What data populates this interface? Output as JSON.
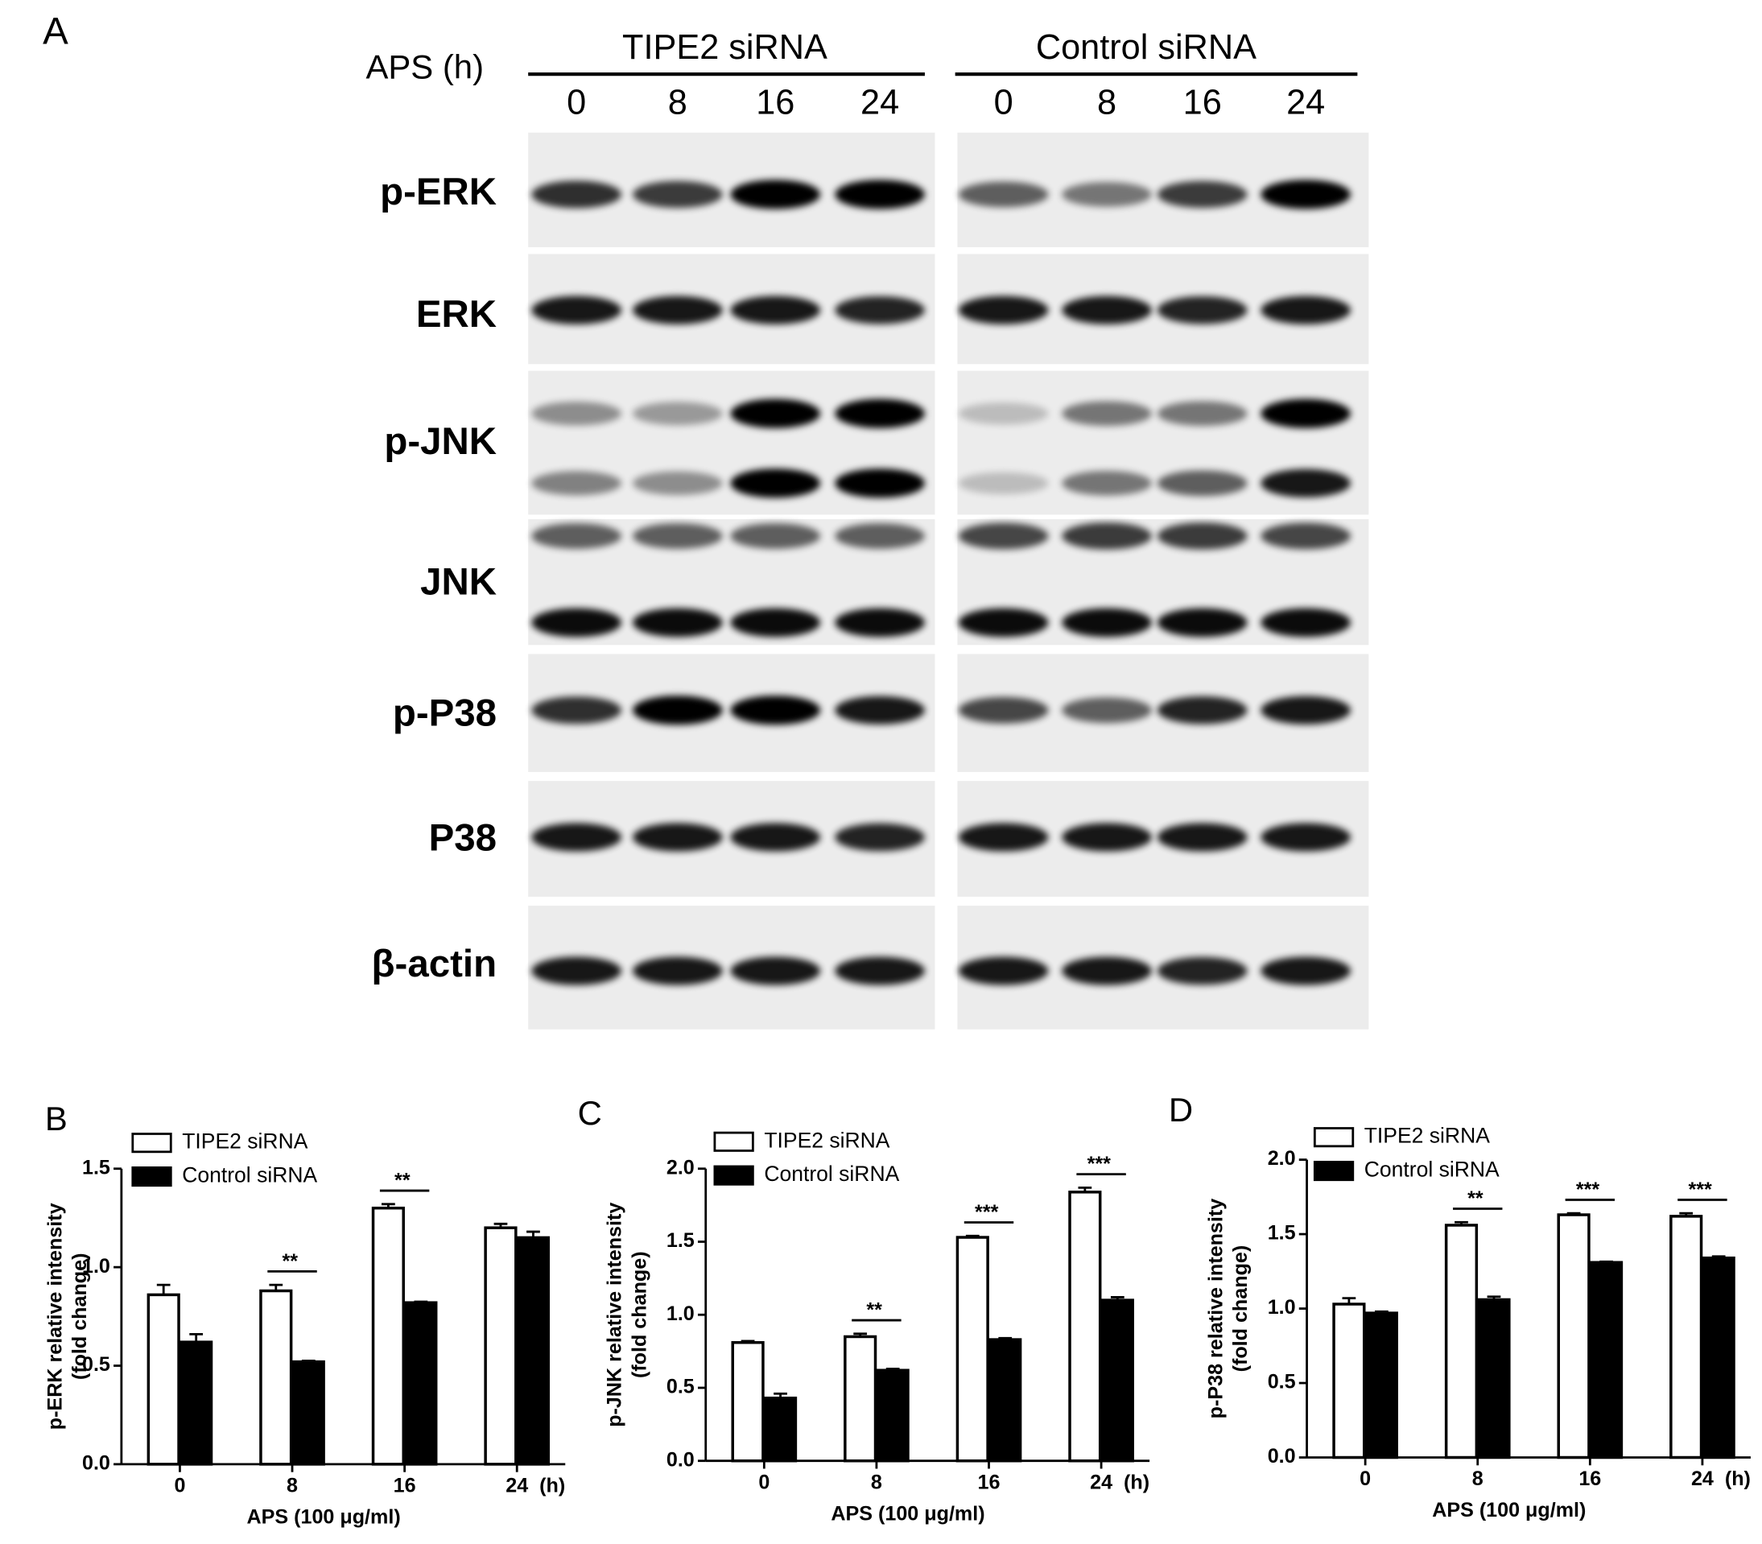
{
  "blot": {
    "panel_label": "A",
    "treatment_label": "APS (h)",
    "groups": [
      {
        "name": "TIPE2 siRNA",
        "timepoints": [
          "0",
          "8",
          "16",
          "24"
        ]
      },
      {
        "name": "Control siRNA",
        "timepoints": [
          "0",
          "8",
          "16",
          "24"
        ]
      }
    ],
    "rows": [
      "p-ERK",
      "ERK",
      "p-JNK",
      "JNK",
      "p-P38",
      "P38",
      "β-actin"
    ]
  },
  "chart_data": [
    {
      "type": "bar",
      "panel_label": "B",
      "y_label": [
        "p-ERK relative intensity",
        "(fold change)"
      ],
      "x_label": "APS (100 μg/ml)",
      "x_unit": "(h)",
      "categories": [
        "0",
        "8",
        "16",
        "24"
      ],
      "series": [
        {
          "name": "TIPE2 siRNA",
          "color": "#ffffff",
          "values": [
            0.86,
            0.88,
            1.3,
            1.2
          ],
          "errors": [
            0.05,
            0.03,
            0.02,
            0.02
          ]
        },
        {
          "name": "Control siRNA",
          "color": "#000000",
          "values": [
            0.62,
            0.52,
            0.82,
            1.15
          ],
          "errors": [
            0.04,
            0.005,
            0.005,
            0.03
          ]
        }
      ],
      "annotations": [
        null,
        "**",
        "**",
        null
      ],
      "ylim": [
        0,
        1.5
      ],
      "yticks": [
        {
          "value": 0,
          "label": "0.0"
        },
        {
          "value": 0.5,
          "label": "0.5"
        },
        {
          "value": 1,
          "label": "1.0"
        },
        {
          "value": 1.5,
          "label": "1.5"
        }
      ]
    },
    {
      "type": "bar",
      "panel_label": "C",
      "y_label": [
        "p-JNK relative intensity",
        "(fold change)"
      ],
      "x_label": "APS (100 μg/ml)",
      "x_unit": "(h)",
      "categories": [
        "0",
        "8",
        "16",
        "24"
      ],
      "series": [
        {
          "name": "TIPE2 siRNA",
          "color": "#ffffff",
          "values": [
            0.81,
            0.85,
            1.53,
            1.84
          ],
          "errors": [
            0.01,
            0.02,
            0.01,
            0.03
          ]
        },
        {
          "name": "Control siRNA",
          "color": "#000000",
          "values": [
            0.43,
            0.62,
            0.83,
            1.1
          ],
          "errors": [
            0.03,
            0.01,
            0.01,
            0.02
          ]
        }
      ],
      "annotations": [
        null,
        "**",
        "***",
        "***"
      ],
      "ylim": [
        0,
        2
      ],
      "yticks": [
        {
          "value": 0,
          "label": "0.0"
        },
        {
          "value": 0.5,
          "label": "0.5"
        },
        {
          "value": 1,
          "label": "1.0"
        },
        {
          "value": 1.5,
          "label": "1.5"
        },
        {
          "value": 2,
          "label": "2.0"
        }
      ]
    },
    {
      "type": "bar",
      "panel_label": "D",
      "y_label": [
        "p-P38 relative intensity",
        "(fold change)"
      ],
      "x_label": "APS (100 μg/ml)",
      "x_unit": "(h)",
      "categories": [
        "0",
        "8",
        "16",
        "24"
      ],
      "series": [
        {
          "name": "TIPE2 siRNA",
          "color": "#ffffff",
          "values": [
            1.03,
            1.56,
            1.63,
            1.62
          ],
          "errors": [
            0.04,
            0.02,
            0.01,
            0.02
          ]
        },
        {
          "name": "Control siRNA",
          "color": "#000000",
          "values": [
            0.97,
            1.06,
            1.31,
            1.34
          ],
          "errors": [
            0.01,
            0.02,
            0.005,
            0.01
          ]
        }
      ],
      "annotations": [
        null,
        "**",
        "***",
        "***"
      ],
      "ylim": [
        0,
        2
      ],
      "yticks": [
        {
          "value": 0,
          "label": "0.0"
        },
        {
          "value": 0.5,
          "label": "0.5"
        },
        {
          "value": 1,
          "label": "1.0"
        },
        {
          "value": 1.5,
          "label": "1.5"
        },
        {
          "value": 2,
          "label": "2.0"
        }
      ]
    }
  ]
}
